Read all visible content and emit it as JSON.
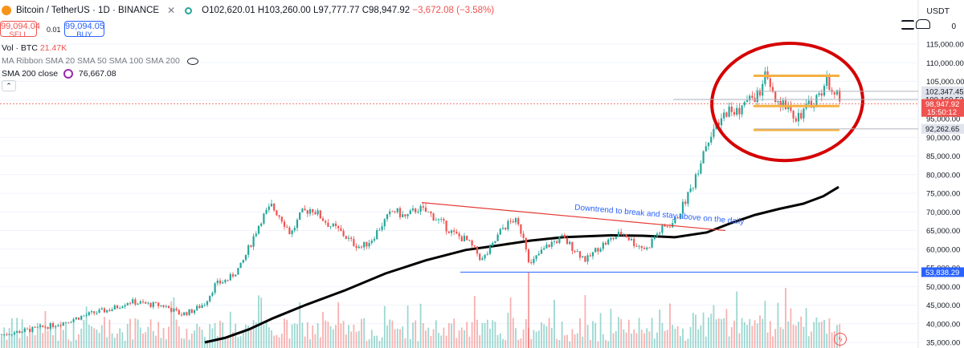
{
  "header": {
    "title": "Bitcoin / TetherUS · 1D · BINANCE",
    "open": "O102,620.01",
    "high": "H103,260.00",
    "low": "L97,777.77",
    "close": "C98,947.92",
    "change": "−3,672.08 (−3.58%)"
  },
  "trade": {
    "sell_price": "99,094.04",
    "sell_label": "SELL",
    "spread": "0.01",
    "buy_price": "99,094.05",
    "buy_label": "BUY"
  },
  "indicators": {
    "volume_label": "Vol · BTC",
    "volume_value": "21.47K",
    "ma_ribbon": "MA Ribbon SMA 20 SMA 50 SMA 100 SMA 200",
    "sma_label": "SMA 200 close",
    "sma_value": "76,667.08"
  },
  "axis": {
    "currency": "USDT",
    "top_partial": "0"
  },
  "colors": {
    "up": "#26a69a",
    "down": "#ef5350",
    "sma": "#000000",
    "trendline": "#e53935",
    "support": "#2962ff",
    "range": "#f5b041",
    "circle": "#d50000",
    "annotation_text": "#2962ff"
  },
  "chart_data": {
    "type": "candlestick",
    "ylim": [
      35000,
      115000
    ],
    "yticks": [
      35000,
      40000,
      45000,
      50000,
      55000,
      60000,
      65000,
      70000,
      75000,
      80000,
      85000,
      90000,
      95000,
      100000,
      105000,
      110000,
      115000
    ],
    "ytick_labels": [
      "35,000.00",
      "40,000.00",
      "45,000.00",
      "50,000.00",
      "55,000.00",
      "60,000.00",
      "65,000.00",
      "70,000.00",
      "75,000.00",
      "80,000.00",
      "85,000.00",
      "90,000.00",
      "95,000.00",
      "100,000.00",
      "105,000.00",
      "110,000.00",
      "115,000.00"
    ],
    "price_path": [
      [
        0,
        37000
      ],
      [
        40,
        38500
      ],
      [
        70,
        39800
      ],
      [
        95,
        41500
      ],
      [
        115,
        42800
      ],
      [
        140,
        44000
      ],
      [
        160,
        46000
      ],
      [
        185,
        45200
      ],
      [
        205,
        44800
      ],
      [
        225,
        42500
      ],
      [
        240,
        43500
      ],
      [
        255,
        45500
      ],
      [
        268,
        50500
      ],
      [
        285,
        52000
      ],
      [
        300,
        55500
      ],
      [
        312,
        61500
      ],
      [
        325,
        68000
      ],
      [
        338,
        71500
      ],
      [
        350,
        68500
      ],
      [
        362,
        64000
      ],
      [
        375,
        69500
      ],
      [
        388,
        71000
      ],
      [
        400,
        68500
      ],
      [
        410,
        66500
      ],
      [
        422,
        65000
      ],
      [
        438,
        61800
      ],
      [
        450,
        60500
      ],
      [
        462,
        62500
      ],
      [
        475,
        66500
      ],
      [
        490,
        70500
      ],
      [
        505,
        68500
      ],
      [
        520,
        71000
      ],
      [
        535,
        69500
      ],
      [
        550,
        67000
      ],
      [
        565,
        64000
      ],
      [
        580,
        62500
      ],
      [
        592,
        59500
      ],
      [
        600,
        57000
      ],
      [
        612,
        60500
      ],
      [
        625,
        65500
      ],
      [
        640,
        68000
      ],
      [
        652,
        63500
      ],
      [
        660,
        55500
      ],
      [
        670,
        58500
      ],
      [
        685,
        61500
      ],
      [
        700,
        63000
      ],
      [
        715,
        60000
      ],
      [
        730,
        57000
      ],
      [
        745,
        60500
      ],
      [
        760,
        62500
      ],
      [
        775,
        64500
      ],
      [
        790,
        61500
      ],
      [
        805,
        60000
      ],
      [
        815,
        63500
      ],
      [
        825,
        65500
      ],
      [
        840,
        67500
      ],
      [
        852,
        72500
      ],
      [
        865,
        78500
      ],
      [
        875,
        86000
      ],
      [
        885,
        91500
      ],
      [
        895,
        93000
      ],
      [
        905,
        97500
      ],
      [
        915,
        96500
      ],
      [
        925,
        98500
      ],
      [
        935,
        100500
      ],
      [
        945,
        101500
      ],
      [
        952,
        106500
      ],
      [
        960,
        102000
      ],
      [
        970,
        97500
      ],
      [
        980,
        99500
      ],
      [
        990,
        95500
      ],
      [
        1000,
        97000
      ],
      [
        1010,
        99000
      ],
      [
        1020,
        101500
      ],
      [
        1028,
        105000
      ],
      [
        1035,
        104000
      ],
      [
        1040,
        102000
      ],
      [
        1046,
        98947
      ]
    ],
    "sma200_path": [
      [
        255,
        35000
      ],
      [
        280,
        36200
      ],
      [
        310,
        38500
      ],
      [
        340,
        41500
      ],
      [
        380,
        45000
      ],
      [
        430,
        49000
      ],
      [
        480,
        53500
      ],
      [
        530,
        57000
      ],
      [
        580,
        59800
      ],
      [
        620,
        61000
      ],
      [
        660,
        62300
      ],
      [
        700,
        63200
      ],
      [
        760,
        63700
      ],
      [
        800,
        63600
      ],
      [
        840,
        63200
      ],
      [
        880,
        64500
      ],
      [
        910,
        67000
      ],
      [
        940,
        69200
      ],
      [
        970,
        70800
      ],
      [
        1000,
        72200
      ],
      [
        1025,
        74200
      ],
      [
        1044,
        76667
      ]
    ],
    "hlines": [
      {
        "y": 102347.45,
        "label": "102,347.45",
        "from_x": 940,
        "color": "#b2b5be",
        "label_bg": "#e0e3eb",
        "label_fg": "#131722"
      },
      {
        "y": 100160.52,
        "label": "100,160.52",
        "from_x": 838,
        "color": "#b2b5be",
        "label_bg": "#e0e3eb",
        "label_fg": "#131722"
      },
      {
        "y": 98947.92,
        "label": "98,947.92",
        "sublabel": "15:50:12",
        "from_x": 0,
        "color": "#ef5350",
        "dashed": true,
        "label_bg": "#ef5350",
        "label_fg": "#ffffff"
      },
      {
        "y": 92262.65,
        "label": "92,262.65",
        "from_x": 940,
        "color": "#b2b5be",
        "label_bg": "#e0e3eb",
        "label_fg": "#131722"
      },
      {
        "y": 53838.29,
        "label": "53,838.29",
        "from_x": 573,
        "color": "#2962ff",
        "label_bg": "#2962ff",
        "label_fg": "#ffffff"
      }
    ],
    "trendline": {
      "x1": 525,
      "y1": 72500,
      "x2": 903,
      "y2": 65000
    },
    "range_box": {
      "x1": 938,
      "x2": 1045,
      "top": 106500,
      "mid": 98400,
      "bottom": 92000
    },
    "annotation": "Downtrend to break and stay above on the daily"
  }
}
